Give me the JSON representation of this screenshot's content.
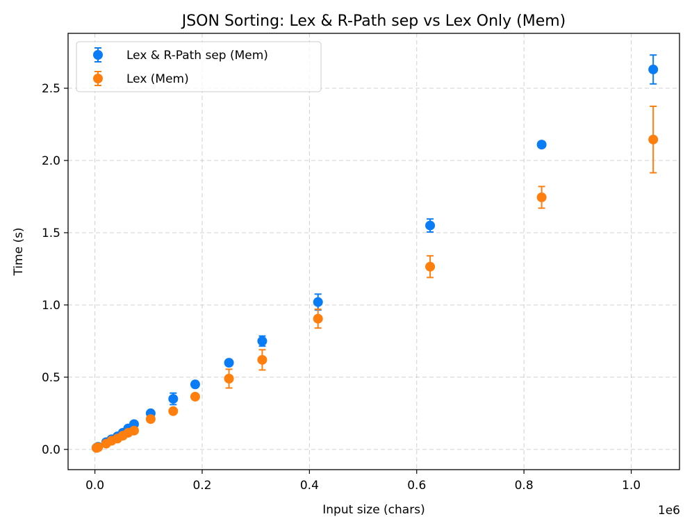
{
  "chart_data": {
    "type": "scatter",
    "title": "JSON Sorting: Lex & R-Path sep vs Lex Only (Mem)",
    "xlabel": "Input size (chars)",
    "ylabel": "Time (s)",
    "x_offset_label": "1e6",
    "x_scale": 1000000,
    "xlim": [
      -50000,
      1090000
    ],
    "ylim": [
      -0.14,
      2.88
    ],
    "x_ticks": [
      0,
      200000,
      400000,
      600000,
      800000,
      1000000
    ],
    "x_tick_labels": [
      "0.0",
      "0.2",
      "0.4",
      "0.6",
      "0.8",
      "1.0"
    ],
    "y_ticks": [
      0,
      0.5,
      1.0,
      1.5,
      2.0,
      2.5
    ],
    "y_tick_labels": [
      "0.0",
      "0.5",
      "1.0",
      "1.5",
      "2.0",
      "2.5"
    ],
    "grid": true,
    "legend_position": "top-left",
    "series": [
      {
        "name": "Lex & R-Path sep (Mem)",
        "color": "#0a7cf5",
        "points": [
          {
            "x": 3000,
            "y": 0.012,
            "err": 0.005
          },
          {
            "x": 6000,
            "y": 0.018,
            "err": 0.005
          },
          {
            "x": 21000,
            "y": 0.05,
            "err": 0.008
          },
          {
            "x": 31000,
            "y": 0.07,
            "err": 0.008
          },
          {
            "x": 42000,
            "y": 0.09,
            "err": 0.008
          },
          {
            "x": 52000,
            "y": 0.115,
            "err": 0.01
          },
          {
            "x": 62000,
            "y": 0.145,
            "err": 0.01
          },
          {
            "x": 73000,
            "y": 0.175,
            "err": 0.012
          },
          {
            "x": 104000,
            "y": 0.25,
            "err": 0.015
          },
          {
            "x": 146000,
            "y": 0.35,
            "err": 0.04
          },
          {
            "x": 187000,
            "y": 0.45,
            "err": 0.02
          },
          {
            "x": 250000,
            "y": 0.6,
            "err": 0.015
          },
          {
            "x": 312000,
            "y": 0.75,
            "err": 0.035
          },
          {
            "x": 416000,
            "y": 1.02,
            "err": 0.055
          },
          {
            "x": 625000,
            "y": 1.55,
            "err": 0.045
          },
          {
            "x": 833000,
            "y": 2.11,
            "err": 0.02
          },
          {
            "x": 1041000,
            "y": 2.63,
            "err": 0.1
          }
        ]
      },
      {
        "name": "Lex (Mem)",
        "color": "#ff7f0e",
        "points": [
          {
            "x": 3000,
            "y": 0.01,
            "err": 0.005
          },
          {
            "x": 6000,
            "y": 0.015,
            "err": 0.005
          },
          {
            "x": 21000,
            "y": 0.04,
            "err": 0.008
          },
          {
            "x": 31000,
            "y": 0.06,
            "err": 0.008
          },
          {
            "x": 42000,
            "y": 0.075,
            "err": 0.008
          },
          {
            "x": 52000,
            "y": 0.095,
            "err": 0.01
          },
          {
            "x": 62000,
            "y": 0.115,
            "err": 0.01
          },
          {
            "x": 73000,
            "y": 0.13,
            "err": 0.012
          },
          {
            "x": 104000,
            "y": 0.21,
            "err": 0.015
          },
          {
            "x": 146000,
            "y": 0.265,
            "err": 0.015
          },
          {
            "x": 187000,
            "y": 0.365,
            "err": 0.015
          },
          {
            "x": 250000,
            "y": 0.49,
            "err": 0.065
          },
          {
            "x": 312000,
            "y": 0.62,
            "err": 0.07
          },
          {
            "x": 416000,
            "y": 0.905,
            "err": 0.065
          },
          {
            "x": 625000,
            "y": 1.265,
            "err": 0.075
          },
          {
            "x": 833000,
            "y": 1.745,
            "err": 0.075
          },
          {
            "x": 1041000,
            "y": 2.145,
            "err": 0.23
          }
        ]
      }
    ]
  }
}
